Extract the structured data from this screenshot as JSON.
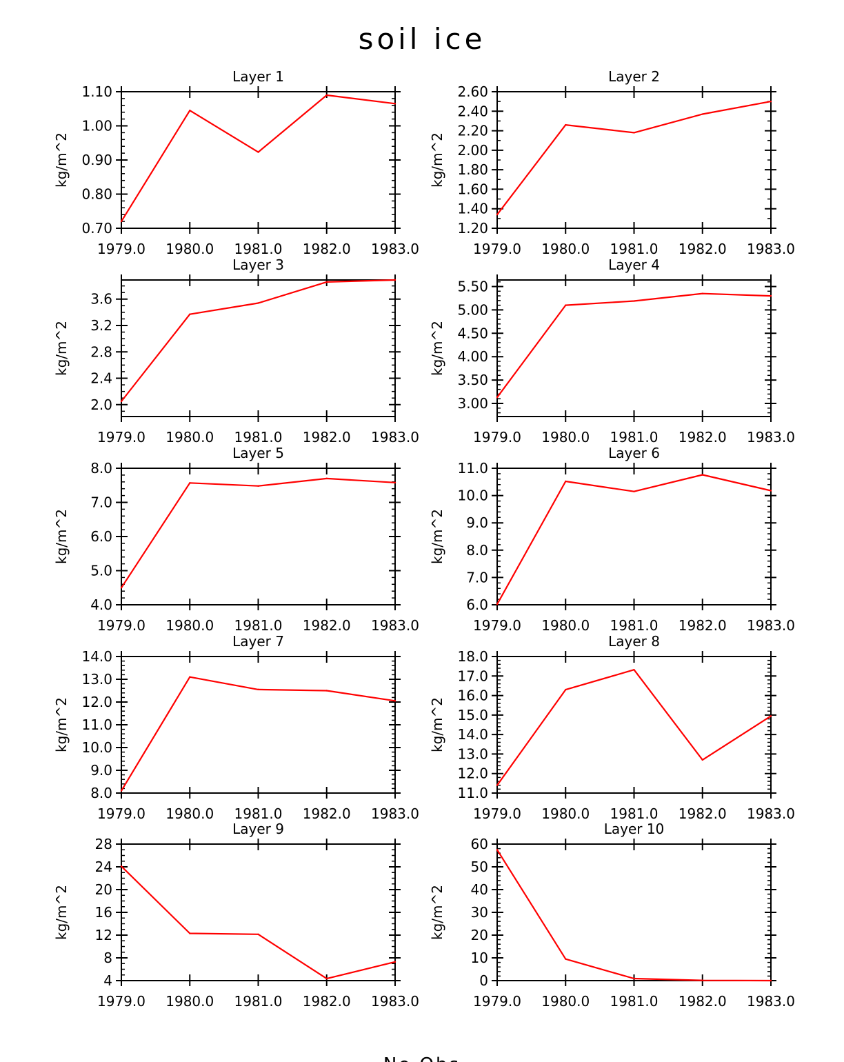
{
  "figure": {
    "title": "soil ice",
    "footer": "No Obs",
    "line_color": "#ff0000",
    "axis_color": "#000000"
  },
  "chart_data": [
    {
      "type": "line",
      "title": "Layer 1",
      "ylabel": "kg/m^2",
      "x": [
        1979.0,
        1980.0,
        1981.0,
        1982.0,
        1983.0
      ],
      "xticks": [
        "1979.0",
        "1980.0",
        "1981.0",
        "1982.0",
        "1983.0"
      ],
      "y": [
        0.72,
        1.045,
        0.923,
        1.09,
        1.065
      ],
      "ylim": [
        0.7,
        1.1
      ],
      "yticks": [
        0.7,
        0.8,
        0.9,
        1.0,
        1.1
      ],
      "yticklabels": [
        "0.70",
        "0.80",
        "0.90",
        "1.00",
        "1.10"
      ],
      "yminor": 4
    },
    {
      "type": "line",
      "title": "Layer 2",
      "ylabel": "kg/m^2",
      "x": [
        1979.0,
        1980.0,
        1981.0,
        1982.0,
        1983.0
      ],
      "xticks": [
        "1979.0",
        "1980.0",
        "1981.0",
        "1982.0",
        "1983.0"
      ],
      "y": [
        1.34,
        2.26,
        2.18,
        2.37,
        2.5
      ],
      "ylim": [
        1.2,
        2.6
      ],
      "yticks": [
        1.2,
        1.4,
        1.6,
        1.8,
        2.0,
        2.2,
        2.4,
        2.6
      ],
      "yticklabels": [
        "1.20",
        "1.40",
        "1.60",
        "1.80",
        "2.00",
        "2.20",
        "2.40",
        "2.60"
      ],
      "yminor": 1
    },
    {
      "type": "line",
      "title": "Layer 3",
      "ylabel": "kg/m^2",
      "x": [
        1979.0,
        1980.0,
        1981.0,
        1982.0,
        1983.0
      ],
      "xticks": [
        "1979.0",
        "1980.0",
        "1981.0",
        "1982.0",
        "1983.0"
      ],
      "y": [
        2.05,
        3.37,
        3.54,
        3.86,
        3.89
      ],
      "ylim": [
        1.82,
        3.89
      ],
      "yticks": [
        2.0,
        2.4,
        2.8,
        3.2,
        3.6
      ],
      "yticklabels": [
        "2.0",
        "2.4",
        "2.8",
        "3.2",
        "3.6"
      ],
      "yminor": 3
    },
    {
      "type": "line",
      "title": "Layer 4",
      "ylabel": "kg/m^2",
      "x": [
        1979.0,
        1980.0,
        1981.0,
        1982.0,
        1983.0
      ],
      "xticks": [
        "1979.0",
        "1980.0",
        "1981.0",
        "1982.0",
        "1983.0"
      ],
      "y": [
        3.13,
        5.1,
        5.19,
        5.35,
        5.3
      ],
      "ylim": [
        2.72,
        5.64
      ],
      "yticks": [
        3.0,
        3.5,
        4.0,
        4.5,
        5.0,
        5.5
      ],
      "yticklabels": [
        "3.00",
        "3.50",
        "4.00",
        "4.50",
        "5.00",
        "5.50"
      ],
      "yminor": 4
    },
    {
      "type": "line",
      "title": "Layer 5",
      "ylabel": "kg/m^2",
      "x": [
        1979.0,
        1980.0,
        1981.0,
        1982.0,
        1983.0
      ],
      "xticks": [
        "1979.0",
        "1980.0",
        "1981.0",
        "1982.0",
        "1983.0"
      ],
      "y": [
        4.5,
        7.57,
        7.48,
        7.7,
        7.58
      ],
      "ylim": [
        4.0,
        8.0
      ],
      "yticks": [
        4.0,
        5.0,
        6.0,
        7.0,
        8.0
      ],
      "yticklabels": [
        "4.0",
        "5.0",
        "6.0",
        "7.0",
        "8.0"
      ],
      "yminor": 4
    },
    {
      "type": "line",
      "title": "Layer 6",
      "ylabel": "kg/m^2",
      "x": [
        1979.0,
        1980.0,
        1981.0,
        1982.0,
        1983.0
      ],
      "xticks": [
        "1979.0",
        "1980.0",
        "1981.0",
        "1982.0",
        "1983.0"
      ],
      "y": [
        6.02,
        10.52,
        10.15,
        10.76,
        10.18
      ],
      "ylim": [
        6.0,
        11.0
      ],
      "yticks": [
        6.0,
        7.0,
        8.0,
        9.0,
        10.0,
        11.0
      ],
      "yticklabels": [
        "6.0",
        "7.0",
        "8.0",
        "9.0",
        "10.0",
        "11.0"
      ],
      "yminor": 4
    },
    {
      "type": "line",
      "title": "Layer 7",
      "ylabel": "kg/m^2",
      "x": [
        1979.0,
        1980.0,
        1981.0,
        1982.0,
        1983.0
      ],
      "xticks": [
        "1979.0",
        "1980.0",
        "1981.0",
        "1982.0",
        "1983.0"
      ],
      "y": [
        8.1,
        13.1,
        12.55,
        12.5,
        12.05
      ],
      "ylim": [
        8.0,
        14.0
      ],
      "yticks": [
        8.0,
        9.0,
        10.0,
        11.0,
        12.0,
        13.0,
        14.0
      ],
      "yticklabels": [
        "8.0",
        "9.0",
        "10.0",
        "11.0",
        "12.0",
        "13.0",
        "14.0"
      ],
      "yminor": 4
    },
    {
      "type": "line",
      "title": "Layer 8",
      "ylabel": "kg/m^2",
      "x": [
        1979.0,
        1980.0,
        1981.0,
        1982.0,
        1983.0
      ],
      "xticks": [
        "1979.0",
        "1980.0",
        "1981.0",
        "1982.0",
        "1983.0"
      ],
      "y": [
        11.4,
        16.3,
        17.32,
        12.7,
        14.95
      ],
      "ylim": [
        11.0,
        18.0
      ],
      "yticks": [
        11.0,
        12.0,
        13.0,
        14.0,
        15.0,
        16.0,
        17.0,
        18.0
      ],
      "yticklabels": [
        "11.0",
        "12.0",
        "13.0",
        "14.0",
        "15.0",
        "16.0",
        "17.0",
        "18.0"
      ],
      "yminor": 4
    },
    {
      "type": "line",
      "title": "Layer 9",
      "ylabel": "kg/m^2",
      "x": [
        1979.0,
        1980.0,
        1981.0,
        1982.0,
        1983.0
      ],
      "xticks": [
        "1979.0",
        "1980.0",
        "1981.0",
        "1982.0",
        "1983.0"
      ],
      "y": [
        24.1,
        12.3,
        12.15,
        4.35,
        7.3
      ],
      "ylim": [
        4.0,
        28.0
      ],
      "yticks": [
        4,
        8,
        12,
        16,
        20,
        24,
        28
      ],
      "yticklabels": [
        "4",
        "8",
        "12",
        "16",
        "20",
        "24",
        "28"
      ],
      "yminor": 3
    },
    {
      "type": "line",
      "title": "Layer 10",
      "ylabel": "kg/m^2",
      "x": [
        1979.0,
        1980.0,
        1981.0,
        1982.0,
        1983.0
      ],
      "xticks": [
        "1979.0",
        "1980.0",
        "1981.0",
        "1982.0",
        "1983.0"
      ],
      "y": [
        57.5,
        9.5,
        0.9,
        0.1,
        0.0
      ],
      "ylim": [
        0.0,
        60.0
      ],
      "yticks": [
        0,
        10,
        20,
        30,
        40,
        50,
        60
      ],
      "yticklabels": [
        "0",
        "10",
        "20",
        "30",
        "40",
        "50",
        "60"
      ],
      "yminor": 4
    }
  ]
}
